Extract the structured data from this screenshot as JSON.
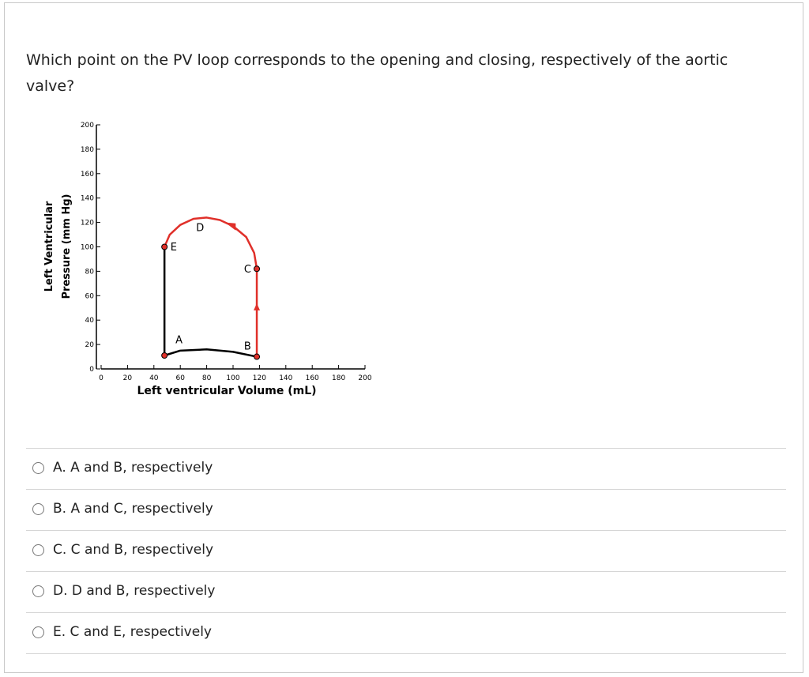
{
  "question": "Which point on the PV loop  corresponds to the opening and closing, respectively of the aortic valve?",
  "figure": {
    "y_label": [
      "Left Ventricular",
      "Pressure (mm Hg)"
    ],
    "x_label": "Left ventricular Volume (mL)",
    "xlim": [
      0,
      200
    ],
    "ylim": [
      0,
      200
    ],
    "xticks": [
      0,
      20,
      40,
      60,
      80,
      100,
      120,
      140,
      160,
      180,
      200
    ],
    "yticks": [
      0,
      20,
      40,
      60,
      80,
      100,
      120,
      140,
      160,
      180,
      200
    ],
    "series": [
      {
        "color": "#000000",
        "x": [
          48,
          48,
          60,
          80,
          100,
          118
        ],
        "y": [
          100,
          11,
          15,
          16,
          14,
          10
        ]
      },
      {
        "color": "#e0302a",
        "x": [
          118,
          118,
          116,
          110,
          100,
          90,
          80,
          70,
          60,
          52,
          48
        ],
        "y": [
          10,
          82,
          95,
          108,
          117,
          122,
          124,
          123,
          118,
          110,
          100
        ]
      }
    ],
    "markers": {
      "x": [
        48,
        48,
        118,
        118
      ],
      "y": [
        100,
        11,
        10,
        82
      ]
    },
    "point_labels": [
      {
        "text": "A",
        "x": 59,
        "y": 21
      },
      {
        "text": "B",
        "x": 111,
        "y": 16
      },
      {
        "text": "C",
        "x": 111,
        "y": 79
      },
      {
        "text": "D",
        "x": 75,
        "y": 113
      },
      {
        "text": "E",
        "x": 55,
        "y": 97
      }
    ]
  },
  "options": [
    "A. A and B, respectively",
    "B. A and C, respectively",
    "C. C and B, respectively",
    "D. D and B, respectively",
    "E. C and E, respectively"
  ]
}
